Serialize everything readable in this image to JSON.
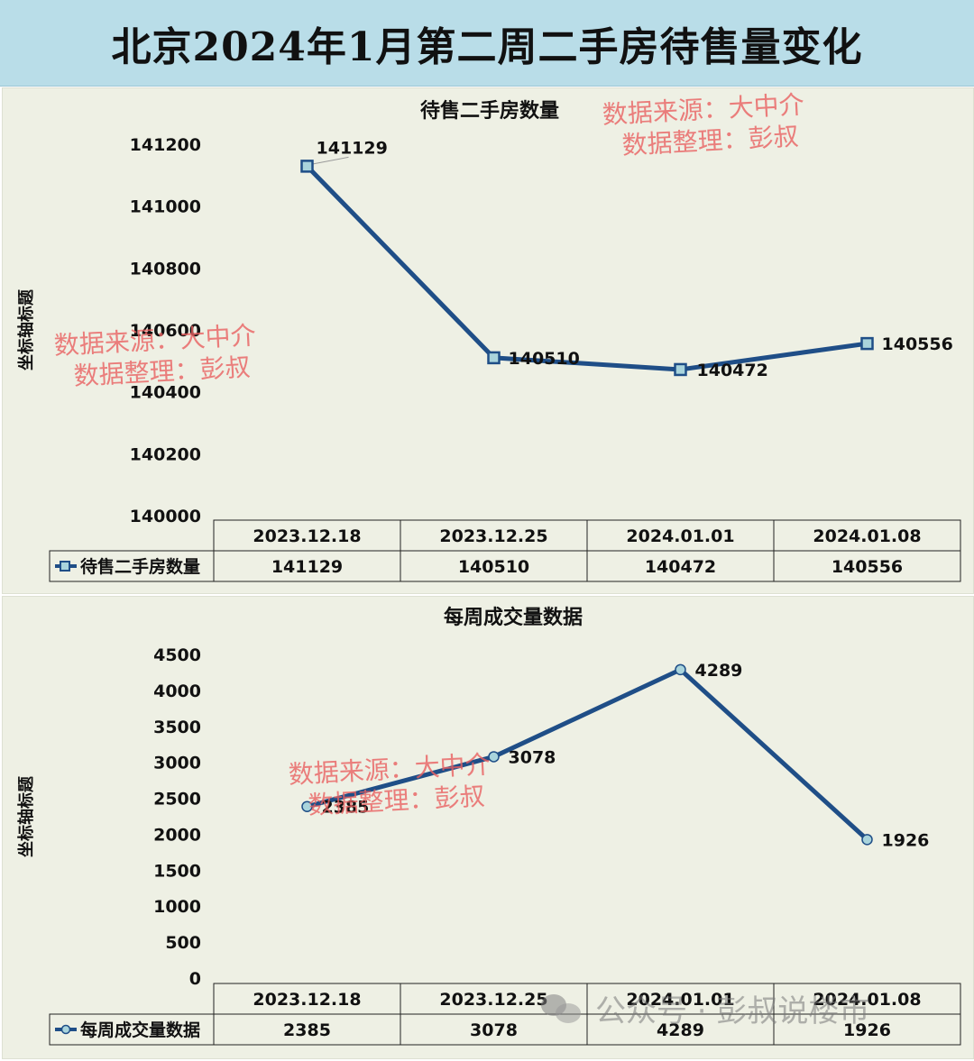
{
  "title": "北京2024年1月第二周二手房待售量变化",
  "watermark": {
    "line1": "数据来源：大中介",
    "line2": "数据整理：彭叔"
  },
  "footer_watermark": "公众号 · 彭叔说楼市",
  "colors": {
    "line": "#1f4e87",
    "marker_fill": "#a9d4dc",
    "watermark": "#e86060",
    "banner": "#b9dde8",
    "panel": "#eef0e4"
  },
  "chart_data": [
    {
      "type": "line",
      "title": "待售二手房数量",
      "ylabel": "坐标轴标题",
      "categories": [
        "2023.12.18",
        "2023.12.25",
        "2024.01.01",
        "2024.01.08"
      ],
      "series": [
        {
          "name": "待售二手房数量",
          "values": [
            141129,
            140510,
            140472,
            140556
          ],
          "marker": "square"
        }
      ],
      "ylim": [
        140000,
        141200
      ],
      "yticks": [
        140000,
        140200,
        140400,
        140600,
        140800,
        141000,
        141200
      ],
      "data_table": true
    },
    {
      "type": "line",
      "title": "每周成交量数据",
      "ylabel": "坐标轴标题",
      "categories": [
        "2023.12.18",
        "2023.12.25",
        "2024.01.01",
        "2024.01.08"
      ],
      "series": [
        {
          "name": "每周成交量数据",
          "values": [
            2385,
            3078,
            4289,
            1926
          ],
          "marker": "circle"
        }
      ],
      "ylim": [
        0,
        4500
      ],
      "yticks": [
        0,
        500,
        1000,
        1500,
        2000,
        2500,
        3000,
        3500,
        4000,
        4500
      ],
      "data_table": true
    }
  ]
}
